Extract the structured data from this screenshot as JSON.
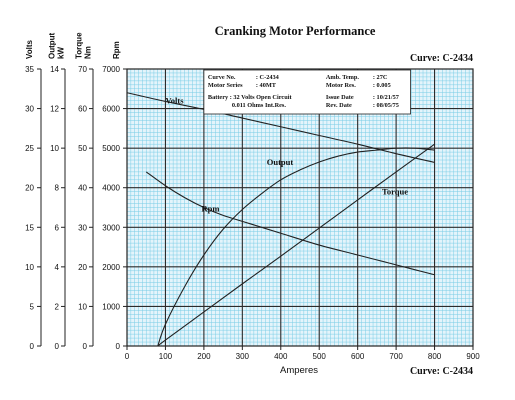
{
  "chart_data": {
    "type": "line",
    "title": "Cranking Motor Performance",
    "curve_label_top": "Curve: C-2434",
    "curve_label_bottom": "Curve: C-2434",
    "xlabel": "Amperes",
    "xlim": [
      0,
      900
    ],
    "xticks": [
      0,
      100,
      200,
      300,
      400,
      500,
      600,
      700,
      800,
      900
    ],
    "grid": true,
    "axes": [
      {
        "key": "volts",
        "label": "Volts",
        "ylim": [
          0,
          35
        ],
        "ticks": [
          0,
          5,
          10,
          15,
          20,
          25,
          30,
          35
        ]
      },
      {
        "key": "output",
        "label": "Output kW",
        "ylim": [
          0,
          14
        ],
        "ticks": [
          0,
          2,
          4,
          6,
          8,
          10,
          12,
          14
        ]
      },
      {
        "key": "torque",
        "label": "Torque Nm",
        "ylim": [
          0,
          70
        ],
        "ticks": [
          0,
          10,
          20,
          30,
          40,
          50,
          60,
          70
        ]
      },
      {
        "key": "rpm",
        "label": "Rpm",
        "ylim": [
          0,
          7000
        ],
        "ticks": [
          0,
          1000,
          2000,
          3000,
          4000,
          5000,
          6000,
          7000
        ]
      }
    ],
    "series": [
      {
        "name": "Volts",
        "axis": "volts",
        "x": [
          0,
          100,
          200,
          300,
          400,
          500,
          600,
          700,
          800
        ],
        "y": [
          32.0,
          30.9,
          29.9,
          28.8,
          27.7,
          26.6,
          25.5,
          24.3,
          23.2
        ]
      },
      {
        "name": "Output",
        "axis": "output",
        "x": [
          80,
          100,
          150,
          200,
          250,
          300,
          350,
          400,
          450,
          500,
          550,
          600,
          650,
          700,
          750,
          800
        ],
        "y": [
          0,
          1.1,
          3.0,
          4.6,
          5.9,
          6.9,
          7.7,
          8.4,
          8.9,
          9.3,
          9.6,
          9.8,
          9.9,
          10.0,
          10.0,
          9.9
        ]
      },
      {
        "name": "Torque",
        "axis": "torque",
        "x": [
          80,
          100,
          200,
          300,
          400,
          500,
          600,
          700,
          800
        ],
        "y": [
          0,
          1.5,
          8.6,
          15.7,
          22.7,
          29.8,
          36.9,
          44.0,
          51.0
        ]
      },
      {
        "name": "Rpm",
        "axis": "rpm",
        "x": [
          50,
          100,
          150,
          200,
          250,
          300,
          400,
          500,
          600,
          700,
          800
        ],
        "y": [
          4400,
          4050,
          3750,
          3500,
          3300,
          3150,
          2850,
          2550,
          2300,
          2050,
          1800
        ]
      }
    ],
    "info_box": {
      "rows": [
        {
          "k1": "Curve No.",
          "v1": ": C-2434",
          "k2": "Amb. Temp.",
          "v2": ": 27C"
        },
        {
          "k1": "Motor Series",
          "v1": ": 40MT",
          "k2": "Motor Res.",
          "v2": ": 0.005"
        },
        {
          "k1": "Battery : 32 Volts Open Circuit",
          "v1": "",
          "k2": "Issue Date",
          "v2": ": 10/21/57"
        },
        {
          "k1": "0.011 Ohms Int.Res.",
          "v1": "",
          "k2": "Rev. Date",
          "v2": ": 08/05/75"
        }
      ]
    }
  },
  "colors": {
    "plot_bg": "#e4f4fb",
    "minor_grid": "#79cde6",
    "major_grid": "#2b2b2b",
    "curve": "#222222",
    "text": "#111111"
  }
}
